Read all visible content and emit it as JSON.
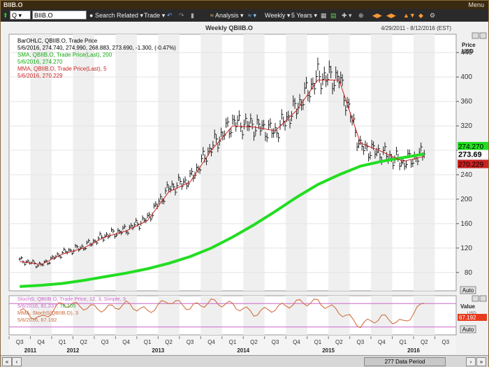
{
  "window": {
    "title": "BIIB.O",
    "menu_label": "Menu"
  },
  "toolbar": {
    "quote_type": "Q",
    "symbol": "BIIB.O",
    "search_label": "Search",
    "related_label": "Related",
    "trade_label": "Trade",
    "analysis_label": "Analysis",
    "interval_label": "Weekly",
    "range_label": "5 Years"
  },
  "chart_header": {
    "title": "Weekly QBIIB.O",
    "date_range": "4/29/2011 - 8/12/2016 (EST)"
  },
  "legend": {
    "bar_title": "BarOHLC, QBIIB.O, Trade Price",
    "bar_values": "5/6/2016, 274.740, 274.990, 268.883, 273.690, -1.300, (-0.47%)",
    "sma_title": "SMA, QBIIB.O, Trade Price(Last), 200",
    "sma_values": "5/6/2016, 274.270",
    "mma_title": "MMA, QBIIB.O, Trade Price(Last), 5",
    "mma_values": "5/6/2016, 270.229",
    "stoch_title": "StochS, QBIIB.O, Trade Price, 12, 3, Simple, 3",
    "stoch_date": "5/6/2016,",
    "stoch_k": "81.237,",
    "stoch_d": "78.105",
    "smma_title": "MMA, StochS(QBIIB.O), 3",
    "smma_values": "5/6/2016, 67.192"
  },
  "price_axis": {
    "title_line1": "Price",
    "title_line2": "USD",
    "ticks": [
      80,
      120,
      160,
      200,
      240,
      280,
      320,
      360,
      400,
      440
    ],
    "tags": {
      "sma": "274.270",
      "last": "273.69",
      "mma": "270.229"
    },
    "auto_label": "Auto"
  },
  "stoch_axis": {
    "title": "Value",
    "unit": "USD",
    "tag": "67.192",
    "auto_label": "Auto"
  },
  "time_axis": {
    "quarters": [
      "Q3",
      "Q4",
      "Q1",
      "Q2",
      "Q3",
      "Q4",
      "Q1",
      "Q2",
      "Q3",
      "Q4",
      "Q1",
      "Q2",
      "Q3",
      "Q4",
      "Q1",
      "Q2",
      "Q3",
      "Q4",
      "Q1",
      "Q2",
      "Q3"
    ],
    "years": [
      "2011",
      "2012",
      "2013",
      "2014",
      "2015",
      "2016"
    ]
  },
  "status": {
    "data_period": "277 Data Period"
  },
  "colors": {
    "sma": "#22dd22",
    "mma": "#cc2222",
    "stoch": "#cc6633",
    "stoch_band": "#cc66cc",
    "bars": "#222222",
    "last_tag": "#111111"
  },
  "chart_data": {
    "type": "line",
    "x": [
      "2011-Q3",
      "2011-Q4",
      "2012-Q1",
      "2012-Q2",
      "2012-Q3",
      "2012-Q4",
      "2013-Q1",
      "2013-Q2",
      "2013-Q3",
      "2013-Q4",
      "2014-Q1",
      "2014-Q2",
      "2014-Q3",
      "2014-Q4",
      "2015-Q1",
      "2015-Q2",
      "2015-Q3",
      "2015-Q4",
      "2016-Q1",
      "2016-Q2"
    ],
    "series": [
      {
        "name": "QBIIB.O",
        "values": [
          100,
          92,
          112,
          122,
          140,
          150,
          168,
          218,
          232,
          285,
          325,
          320,
          310,
          350,
          400,
          398,
          285,
          275,
          260,
          274
        ]
      },
      {
        "name": "SMA 200",
        "values": [
          57,
          59,
          62,
          67,
          73,
          79,
          86,
          95,
          106,
          120,
          138,
          158,
          180,
          203,
          224,
          240,
          254,
          262,
          268,
          274
        ]
      },
      {
        "name": "MMA 5",
        "values": [
          98,
          93,
          110,
          120,
          138,
          148,
          165,
          212,
          228,
          280,
          320,
          318,
          312,
          345,
          395,
          395,
          292,
          278,
          262,
          270
        ]
      }
    ],
    "stoch_series": [
      {
        "name": "StochS",
        "values": [
          62,
          40,
          80,
          72,
          66,
          78,
          60,
          88,
          70,
          84,
          76,
          55,
          68,
          82,
          84,
          60,
          25,
          45,
          30,
          81
        ]
      }
    ],
    "ylim": [
      50,
      470
    ]
  }
}
